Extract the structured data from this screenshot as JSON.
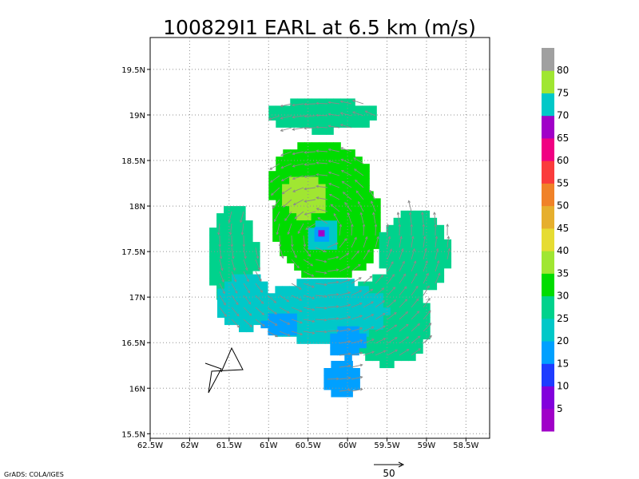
{
  "chart_data": {
    "type": "heatmap",
    "title": "100829I1  EARL at 6.5 km (m/s)",
    "xlim": [
      -62.5,
      -58.2
    ],
    "ylim": [
      15.45,
      19.85
    ],
    "x_ticks": [
      {
        "value": -62.5,
        "label": "62.5W"
      },
      {
        "value": -62.0,
        "label": "62W"
      },
      {
        "value": -61.5,
        "label": "61.5W"
      },
      {
        "value": -61.0,
        "label": "61W"
      },
      {
        "value": -60.5,
        "label": "60.5W"
      },
      {
        "value": -60.0,
        "label": "60W"
      },
      {
        "value": -59.5,
        "label": "59.5W"
      },
      {
        "value": -59.0,
        "label": "59W"
      },
      {
        "value": -58.5,
        "label": "58.5W"
      }
    ],
    "y_ticks": [
      {
        "value": 15.5,
        "label": "15.5N"
      },
      {
        "value": 16.0,
        "label": "16N"
      },
      {
        "value": 16.5,
        "label": "16.5N"
      },
      {
        "value": 17.0,
        "label": "17N"
      },
      {
        "value": 17.5,
        "label": "17.5N"
      },
      {
        "value": 18.0,
        "label": "18N"
      },
      {
        "value": 18.5,
        "label": "18.5N"
      },
      {
        "value": 19.0,
        "label": "19N"
      },
      {
        "value": 19.5,
        "label": "19.5N"
      }
    ],
    "grid": true,
    "storm_center": {
      "lon": -60.33,
      "lat": 17.7
    },
    "colorbar": {
      "labels": [
        "5",
        "10",
        "15",
        "20",
        "25",
        "30",
        "35",
        "40",
        "45",
        "50",
        "55",
        "60",
        "65",
        "70",
        "75",
        "80"
      ],
      "colors": [
        "#a000c8",
        "#8200dc",
        "#1e3cff",
        "#00a0ff",
        "#00c8c8",
        "#00d28c",
        "#00dc00",
        "#a0e632",
        "#e6dc32",
        "#e6af2d",
        "#f08228",
        "#fa3c3c",
        "#f00082",
        "#a000c8",
        "#00c8c8",
        "#a0e632",
        "#a0a0a0"
      ]
    },
    "wind_regions": [
      {
        "name": "outer-west-band",
        "speed_class": 25,
        "lon": -61.45,
        "lat": 17.45,
        "rlon": 0.3,
        "rlat": 0.55
      },
      {
        "name": "outer-sw-band",
        "speed_class": 20,
        "lon": -61.3,
        "lat": 16.95,
        "rlon": 0.35,
        "rlat": 0.3
      },
      {
        "name": "north-band",
        "speed_class": 30,
        "lon": -60.35,
        "lat": 18.25,
        "rlon": 0.65,
        "rlat": 0.45
      },
      {
        "name": "core-ring",
        "speed_class": 30,
        "lon": -60.25,
        "lat": 17.8,
        "rlon": 0.7,
        "rlat": 0.6
      },
      {
        "name": "east-band",
        "speed_class": 25,
        "lon": -59.15,
        "lat": 17.5,
        "rlon": 0.45,
        "rlat": 0.45
      },
      {
        "name": "southeast-band",
        "speed_class": 25,
        "lon": -59.5,
        "lat": 16.75,
        "rlon": 0.55,
        "rlat": 0.5
      },
      {
        "name": "south-band",
        "speed_class": 20,
        "lon": -60.3,
        "lat": 16.85,
        "rlon": 0.8,
        "rlat": 0.35
      },
      {
        "name": "nw-max",
        "speed_class": 35,
        "lon": -60.55,
        "lat": 18.1,
        "rlon": 0.28,
        "rlat": 0.22
      },
      {
        "name": "north-arc",
        "speed_class": 25,
        "lon": -60.3,
        "lat": 19.0,
        "rlon": 0.7,
        "rlat": 0.18
      },
      {
        "name": "eye-wall",
        "speed_class": 20,
        "lon": -60.3,
        "lat": 17.67,
        "rlon": 0.2,
        "rlat": 0.17
      },
      {
        "name": "eye",
        "speed_class": 15,
        "lon": -60.32,
        "lat": 17.68,
        "rlon": 0.1,
        "rlat": 0.09
      },
      {
        "name": "south-low-1",
        "speed_class": 15,
        "lon": -60.0,
        "lat": 16.5,
        "rlon": 0.22,
        "rlat": 0.18
      },
      {
        "name": "south-low-2",
        "speed_class": 15,
        "lon": -60.05,
        "lat": 16.1,
        "rlon": 0.25,
        "rlat": 0.2
      },
      {
        "name": "sw-low",
        "speed_class": 15,
        "lon": -60.85,
        "lat": 16.7,
        "rlon": 0.25,
        "rlat": 0.12
      }
    ],
    "reference_vector": {
      "value": 50,
      "label": "50"
    },
    "credit": "GrADS: COLA/IGES"
  }
}
